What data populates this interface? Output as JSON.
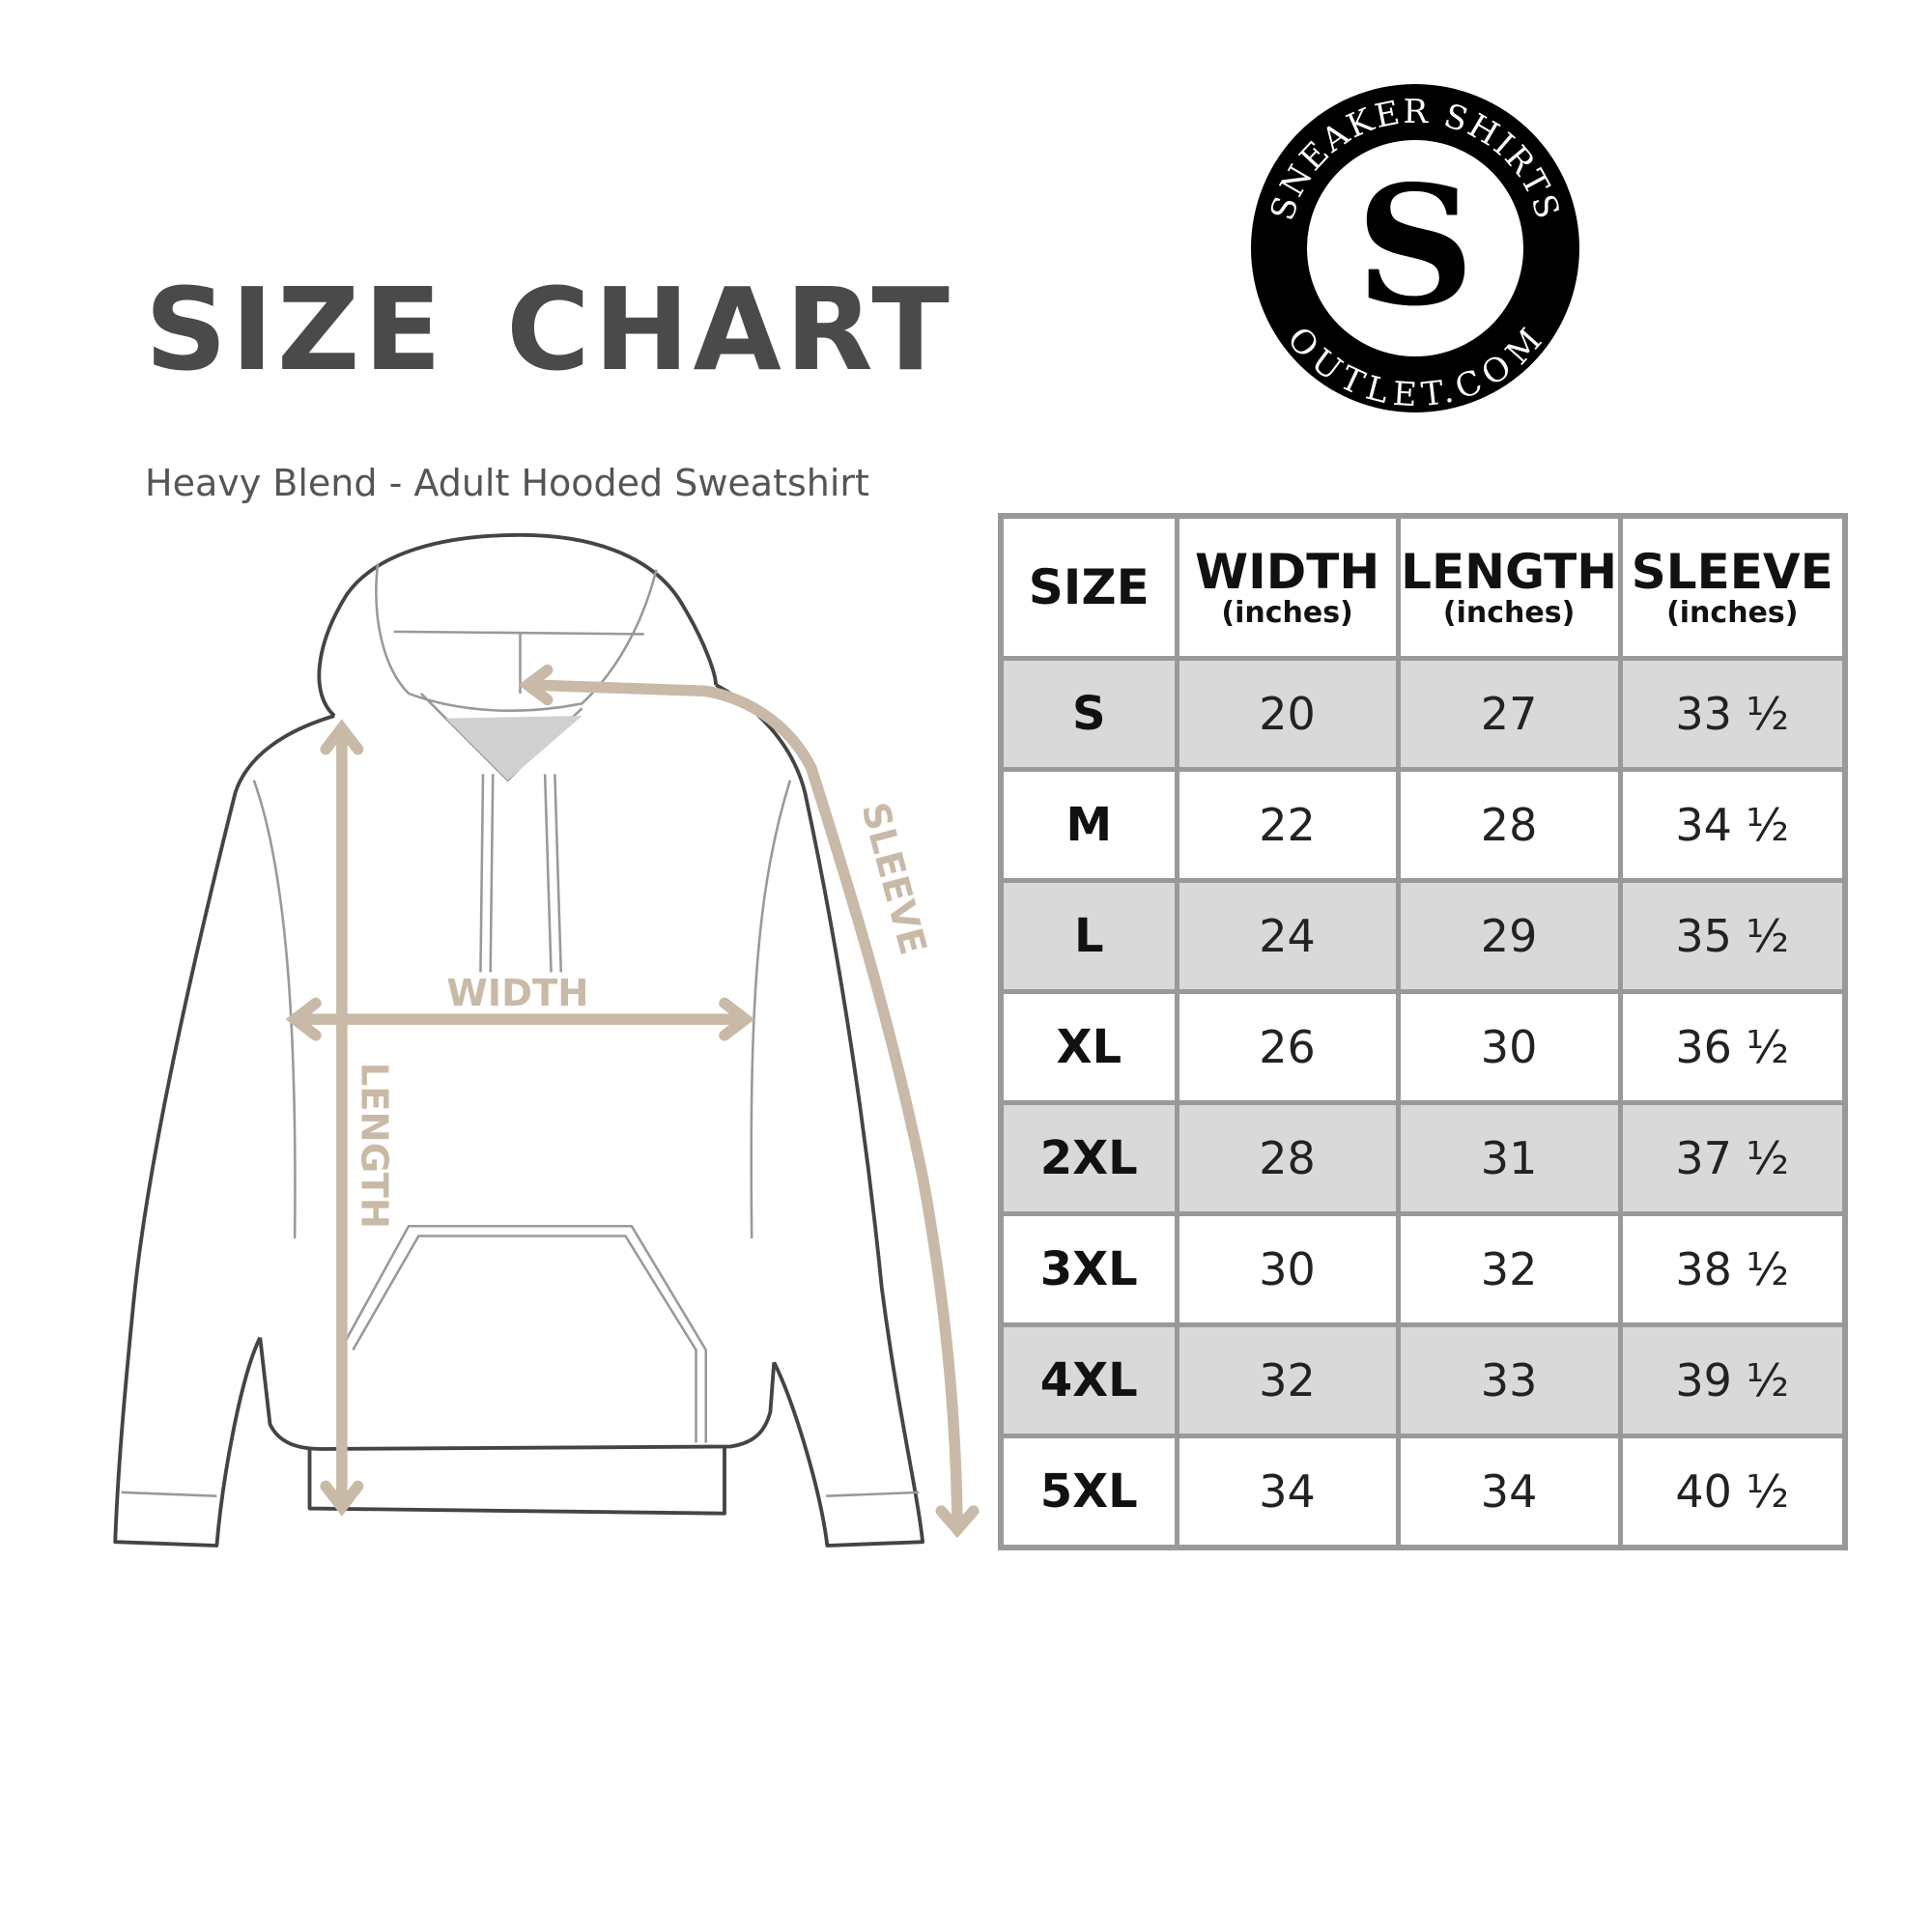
{
  "title": "SIZE CHART",
  "subtitle": "Heavy Blend - Adult Hooded Sweatshirt",
  "logo": {
    "top_text": "SNEAKER SHIRTS",
    "bottom_text": "OUTLET.COM",
    "monogram": "SS"
  },
  "diagram": {
    "labels": {
      "width": "WIDTH",
      "length": "LENGTH",
      "sleeve": "SLEEVE"
    },
    "arrow_color": "#c8baa6"
  },
  "table": {
    "headers": [
      {
        "label": "SIZE",
        "unit": ""
      },
      {
        "label": "WIDTH",
        "unit": "(inches)"
      },
      {
        "label": "LENGTH",
        "unit": "(inches)"
      },
      {
        "label": "SLEEVE",
        "unit": "(inches)"
      }
    ],
    "rows": [
      [
        "S",
        "20",
        "27",
        "33 ½"
      ],
      [
        "M",
        "22",
        "28",
        "34 ½"
      ],
      [
        "L",
        "24",
        "29",
        "35 ½"
      ],
      [
        "XL",
        "26",
        "30",
        "36 ½"
      ],
      [
        "2XL",
        "28",
        "31",
        "37 ½"
      ],
      [
        "3XL",
        "30",
        "32",
        "38 ½"
      ],
      [
        "4XL",
        "32",
        "33",
        "39 ½"
      ],
      [
        "5XL",
        "34",
        "34",
        "40 ½"
      ]
    ],
    "shade_color": "#d9d9d9",
    "border_color": "#999999"
  }
}
